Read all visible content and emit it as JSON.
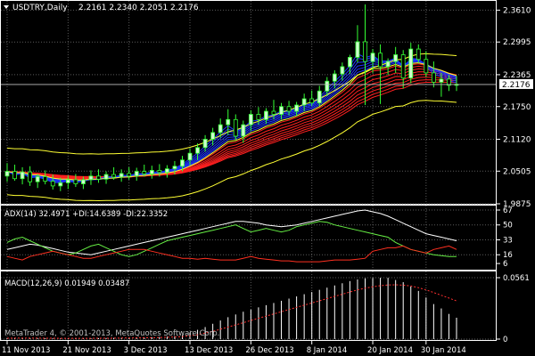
{
  "header": {
    "symbol": "USDTRY,Daily",
    "ohlc": "2.2161 2.2340 2.2051 2.2176"
  },
  "copyright": "MetaTrader 4, © 2001-2013, MetaQuotes Software Corp.",
  "colors": {
    "background": "#000000",
    "frame": "#ffffff",
    "grid": "#5a5a5a",
    "bull_candle": "#ccffcc",
    "bear_candle": "#000000",
    "wick": "#33ff33",
    "envelope": "#ffff33",
    "ema_fast": "#1e32ff",
    "ema_slow": "#ff2020",
    "adx_main": "#ffffff",
    "plus_di": "#66ee44",
    "minus_di": "#ff3020",
    "macd_hist": "#ffffff",
    "macd_signal": "#ff3030",
    "price_label_bg": "#ffffff",
    "price_label_text": "#000000"
  },
  "chart_data": [
    {
      "type": "candlestick",
      "title": "USDTRY,Daily",
      "price_axis": [
        "2.3610",
        "2.2995",
        "2.2365",
        "2.1750",
        "2.1120",
        "2.0505",
        "1.9875"
      ],
      "ylim": [
        1.9875,
        2.3771
      ],
      "current_price": 2.2176,
      "current_price_label": "2.2176",
      "dates": [
        "11 Nov 2013",
        "21 Nov 2013",
        "3 Dec 2013",
        "13 Dec 2013",
        "26 Dec 2013",
        "8 Jan 2014",
        "20 Jan 2014",
        "30 Jan 2014"
      ],
      "ohlc": [
        [
          2.041,
          2.066,
          2.03,
          2.05
        ],
        [
          2.05,
          2.063,
          2.032,
          2.036
        ],
        [
          2.036,
          2.058,
          2.025,
          2.049
        ],
        [
          2.049,
          2.06,
          2.022,
          2.03
        ],
        [
          2.03,
          2.045,
          2.018,
          2.04
        ],
        [
          2.04,
          2.052,
          2.025,
          2.031
        ],
        [
          2.031,
          2.044,
          2.015,
          2.022
        ],
        [
          2.022,
          2.038,
          2.012,
          2.028
        ],
        [
          2.028,
          2.042,
          2.016,
          2.034
        ],
        [
          2.034,
          2.045,
          2.02,
          2.026
        ],
        [
          2.026,
          2.04,
          2.016,
          2.034
        ],
        [
          2.034,
          2.052,
          2.024,
          2.041
        ],
        [
          2.041,
          2.054,
          2.028,
          2.035
        ],
        [
          2.035,
          2.05,
          2.026,
          2.044
        ],
        [
          2.044,
          2.058,
          2.034,
          2.039
        ],
        [
          2.039,
          2.054,
          2.03,
          2.046
        ],
        [
          2.046,
          2.058,
          2.034,
          2.041
        ],
        [
          2.041,
          2.057,
          2.032,
          2.05
        ],
        [
          2.05,
          2.063,
          2.04,
          2.045
        ],
        [
          2.045,
          2.061,
          2.036,
          2.052
        ],
        [
          2.052,
          2.064,
          2.04,
          2.048
        ],
        [
          2.048,
          2.062,
          2.038,
          2.055
        ],
        [
          2.055,
          2.07,
          2.044,
          2.06
        ],
        [
          2.06,
          2.08,
          2.05,
          2.072
        ],
        [
          2.072,
          2.094,
          2.062,
          2.085
        ],
        [
          2.085,
          2.104,
          2.072,
          2.096
        ],
        [
          2.096,
          2.12,
          2.088,
          2.112
        ],
        [
          2.112,
          2.134,
          2.1,
          2.125
        ],
        [
          2.125,
          2.152,
          2.115,
          2.14
        ],
        [
          2.14,
          2.17,
          2.12,
          2.15
        ],
        [
          2.15,
          2.16,
          2.11,
          2.118
        ],
        [
          2.118,
          2.148,
          2.105,
          2.14
        ],
        [
          2.14,
          2.168,
          2.128,
          2.16
        ],
        [
          2.16,
          2.174,
          2.14,
          2.15
        ],
        [
          2.15,
          2.172,
          2.142,
          2.166
        ],
        [
          2.166,
          2.188,
          2.15,
          2.16
        ],
        [
          2.16,
          2.182,
          2.15,
          2.175
        ],
        [
          2.175,
          2.186,
          2.158,
          2.166
        ],
        [
          2.166,
          2.184,
          2.156,
          2.178
        ],
        [
          2.178,
          2.2,
          2.166,
          2.19
        ],
        [
          2.19,
          2.206,
          2.176,
          2.182
        ],
        [
          2.182,
          2.215,
          2.176,
          2.205
        ],
        [
          2.205,
          2.232,
          2.195,
          2.224
        ],
        [
          2.224,
          2.245,
          2.21,
          2.238
        ],
        [
          2.238,
          2.26,
          2.225,
          2.252
        ],
        [
          2.252,
          2.275,
          2.238,
          2.27
        ],
        [
          2.27,
          2.332,
          2.26,
          2.3
        ],
        [
          2.3,
          2.372,
          2.178,
          2.262
        ],
        [
          2.262,
          2.286,
          2.24,
          2.278
        ],
        [
          2.278,
          2.295,
          2.18,
          2.252
        ],
        [
          2.252,
          2.268,
          2.236,
          2.262
        ],
        [
          2.262,
          2.29,
          2.24,
          2.275
        ],
        [
          2.275,
          2.284,
          2.21,
          2.23
        ],
        [
          2.23,
          2.298,
          2.22,
          2.286
        ],
        [
          2.286,
          2.295,
          2.258,
          2.266
        ],
        [
          2.266,
          2.282,
          2.232,
          2.24
        ],
        [
          2.24,
          2.262,
          2.212,
          2.222
        ],
        [
          2.222,
          2.24,
          2.194,
          2.228
        ],
        [
          2.228,
          2.236,
          2.205,
          2.216
        ],
        [
          2.216,
          2.234,
          2.205,
          2.218
        ]
      ]
    },
    {
      "type": "line",
      "title": "ADX(14) 32.4971 +DI:14.6389 -DI:22.3352",
      "ticks": [
        "67",
        "50",
        "33",
        "16",
        "6"
      ],
      "ylim": [
        0,
        67
      ],
      "series": [
        {
          "name": "ADX(14)",
          "values": [
            22,
            24,
            26,
            28,
            27,
            25,
            23,
            21,
            19,
            18,
            17,
            16,
            18,
            20,
            22,
            24,
            26,
            28,
            30,
            32,
            34,
            36,
            38,
            40,
            42,
            44,
            46,
            48,
            50,
            52,
            54,
            54,
            53,
            52,
            50,
            49,
            48,
            49,
            50,
            52,
            54,
            56,
            58,
            60,
            62,
            64,
            66,
            67,
            65,
            63,
            60,
            56,
            52,
            48,
            44,
            40,
            38,
            36,
            34,
            32
          ]
        },
        {
          "name": "+DI",
          "values": [
            30,
            34,
            36,
            32,
            28,
            24,
            20,
            18,
            16,
            18,
            22,
            26,
            28,
            24,
            20,
            16,
            14,
            16,
            20,
            24,
            28,
            32,
            34,
            36,
            38,
            40,
            42,
            44,
            46,
            48,
            50,
            46,
            42,
            44,
            46,
            44,
            42,
            44,
            48,
            50,
            52,
            54,
            53,
            50,
            48,
            46,
            44,
            42,
            40,
            38,
            36,
            30,
            26,
            22,
            20,
            18,
            16,
            15,
            14,
            14
          ]
        },
        {
          "name": "-DI",
          "values": [
            14,
            12,
            10,
            14,
            16,
            18,
            20,
            18,
            16,
            14,
            12,
            12,
            14,
            16,
            18,
            20,
            22,
            22,
            22,
            20,
            18,
            16,
            14,
            12,
            12,
            11,
            12,
            11,
            10,
            10,
            10,
            12,
            14,
            12,
            11,
            10,
            9,
            9,
            8,
            8,
            8,
            8,
            9,
            10,
            10,
            10,
            11,
            12,
            20,
            22,
            24,
            24,
            26,
            22,
            20,
            18,
            22,
            24,
            26,
            22
          ]
        }
      ]
    },
    {
      "type": "bar",
      "title": "MACD(12,26,9) 0.01949 0.03487",
      "ticks": [
        "0.0561",
        "0"
      ],
      "ylim": [
        0,
        0.0561
      ],
      "series": [
        {
          "name": "MACD(12,26,9)",
          "values": [
            0.001,
            0.0011,
            0.0011,
            0.001,
            0.0009,
            0.0008,
            0.0007,
            0.0006,
            0.0006,
            0.0006,
            0.0007,
            0.0008,
            0.0009,
            0.001,
            0.0011,
            0.0012,
            0.0013,
            0.0014,
            0.0016,
            0.0018,
            0.002,
            0.0023,
            0.0026,
            0.0035,
            0.006,
            0.0085,
            0.011,
            0.014,
            0.017,
            0.02,
            0.0225,
            0.025,
            0.027,
            0.029,
            0.031,
            0.033,
            0.035,
            0.037,
            0.039,
            0.041,
            0.043,
            0.045,
            0.047,
            0.049,
            0.051,
            0.053,
            0.0545,
            0.0555,
            0.0558,
            0.056,
            0.056,
            0.054,
            0.052,
            0.048,
            0.044,
            0.038,
            0.032,
            0.028,
            0.023,
            0.0195
          ]
        },
        {
          "name": "Signal",
          "values": [
            0.0008,
            0.0009,
            0.0009,
            0.0009,
            0.0009,
            0.0008,
            0.0008,
            0.0007,
            0.0007,
            0.0007,
            0.0007,
            0.0007,
            0.0008,
            0.0008,
            0.0009,
            0.001,
            0.001,
            0.0011,
            0.0012,
            0.0013,
            0.0015,
            0.0017,
            0.0019,
            0.0022,
            0.003,
            0.004,
            0.0055,
            0.007,
            0.009,
            0.011,
            0.013,
            0.015,
            0.017,
            0.019,
            0.021,
            0.023,
            0.025,
            0.027,
            0.029,
            0.031,
            0.033,
            0.035,
            0.037,
            0.039,
            0.041,
            0.043,
            0.045,
            0.0465,
            0.0478,
            0.0488,
            0.0494,
            0.0496,
            0.0493,
            0.0485,
            0.047,
            0.045,
            0.0425,
            0.04,
            0.0375,
            0.0349
          ]
        }
      ]
    }
  ]
}
